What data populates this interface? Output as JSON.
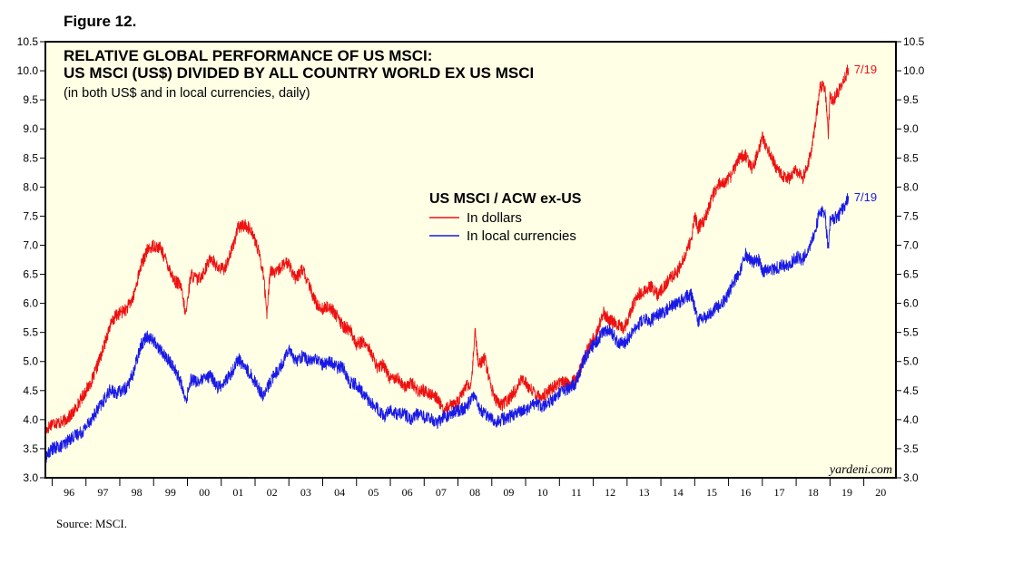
{
  "figure_label": "Figure 12.",
  "source": "Source: MSCI.",
  "colors": {
    "background": "#ffffe6",
    "dollars": "#ee1111",
    "local": "#1a1ae6",
    "frame": "#000000"
  },
  "chart_data": {
    "type": "line",
    "title_lines": [
      "RELATIVE GLOBAL PERFORMANCE OF US MSCI:",
      "US MSCI (US$) DIVIDED BY ALL COUNTRY WORLD EX US MSCI"
    ],
    "subtitle": "(in both US$ and in local currencies, daily)",
    "legend": {
      "title": "US MSCI / ACW ex-US",
      "placement": "center-top",
      "items": [
        "In dollars",
        "In local currencies"
      ]
    },
    "watermark": "yardeni.com",
    "ylim": [
      3.0,
      10.5
    ],
    "yticks": [
      "3.0",
      "3.5",
      "4.0",
      "4.5",
      "5.0",
      "5.5",
      "6.0",
      "6.5",
      "7.0",
      "7.5",
      "8.0",
      "8.5",
      "9.0",
      "9.5",
      "10.0",
      "10.5"
    ],
    "xlim": [
      1995.8,
      2020.95
    ],
    "xtick_labels": [
      "96",
      "97",
      "98",
      "99",
      "00",
      "01",
      "02",
      "03",
      "04",
      "05",
      "06",
      "07",
      "08",
      "09",
      "10",
      "11",
      "12",
      "13",
      "14",
      "15",
      "16",
      "17",
      "18",
      "19",
      "20"
    ],
    "grid": false,
    "series": [
      {
        "name": "In dollars",
        "end_label": "7/19",
        "points": [
          [
            1995.8,
            3.8
          ],
          [
            1996.0,
            3.95
          ],
          [
            1996.3,
            3.95
          ],
          [
            1996.6,
            4.1
          ],
          [
            1996.9,
            4.4
          ],
          [
            1997.2,
            4.7
          ],
          [
            1997.5,
            5.2
          ],
          [
            1997.7,
            5.6
          ],
          [
            1997.9,
            5.8
          ],
          [
            1998.2,
            5.9
          ],
          [
            1998.4,
            6.1
          ],
          [
            1998.6,
            6.6
          ],
          [
            1998.8,
            6.9
          ],
          [
            1999.0,
            7.0
          ],
          [
            1999.2,
            6.95
          ],
          [
            1999.4,
            6.7
          ],
          [
            1999.6,
            6.4
          ],
          [
            1999.8,
            6.3
          ],
          [
            1999.95,
            5.8
          ],
          [
            2000.1,
            6.5
          ],
          [
            2000.3,
            6.4
          ],
          [
            2000.5,
            6.55
          ],
          [
            2000.7,
            6.8
          ],
          [
            2000.9,
            6.6
          ],
          [
            2001.1,
            6.6
          ],
          [
            2001.3,
            6.9
          ],
          [
            2001.5,
            7.3
          ],
          [
            2001.7,
            7.35
          ],
          [
            2001.9,
            7.25
          ],
          [
            2002.1,
            6.9
          ],
          [
            2002.25,
            6.5
          ],
          [
            2002.35,
            5.8
          ],
          [
            2002.45,
            6.6
          ],
          [
            2002.6,
            6.5
          ],
          [
            2002.8,
            6.65
          ],
          [
            2003.0,
            6.7
          ],
          [
            2003.2,
            6.4
          ],
          [
            2003.4,
            6.6
          ],
          [
            2003.6,
            6.3
          ],
          [
            2003.8,
            6.0
          ],
          [
            2004.0,
            5.9
          ],
          [
            2004.2,
            5.95
          ],
          [
            2004.4,
            5.8
          ],
          [
            2004.6,
            5.6
          ],
          [
            2004.8,
            5.55
          ],
          [
            2005.0,
            5.3
          ],
          [
            2005.2,
            5.35
          ],
          [
            2005.4,
            5.2
          ],
          [
            2005.6,
            4.9
          ],
          [
            2005.8,
            4.95
          ],
          [
            2006.0,
            4.7
          ],
          [
            2006.2,
            4.75
          ],
          [
            2006.4,
            4.55
          ],
          [
            2006.6,
            4.65
          ],
          [
            2006.8,
            4.5
          ],
          [
            2007.0,
            4.5
          ],
          [
            2007.2,
            4.45
          ],
          [
            2007.4,
            4.35
          ],
          [
            2007.6,
            4.15
          ],
          [
            2007.8,
            4.25
          ],
          [
            2008.0,
            4.3
          ],
          [
            2008.2,
            4.55
          ],
          [
            2008.4,
            4.6
          ],
          [
            2008.5,
            5.55
          ],
          [
            2008.6,
            4.95
          ],
          [
            2008.8,
            5.05
          ],
          [
            2008.95,
            4.6
          ],
          [
            2009.1,
            4.35
          ],
          [
            2009.3,
            4.25
          ],
          [
            2009.5,
            4.35
          ],
          [
            2009.7,
            4.5
          ],
          [
            2009.9,
            4.7
          ],
          [
            2010.1,
            4.55
          ],
          [
            2010.3,
            4.45
          ],
          [
            2010.5,
            4.4
          ],
          [
            2010.7,
            4.5
          ],
          [
            2010.9,
            4.6
          ],
          [
            2011.1,
            4.65
          ],
          [
            2011.3,
            4.6
          ],
          [
            2011.5,
            4.7
          ],
          [
            2011.7,
            5.0
          ],
          [
            2011.9,
            5.3
          ],
          [
            2012.1,
            5.5
          ],
          [
            2012.3,
            5.85
          ],
          [
            2012.5,
            5.7
          ],
          [
            2012.7,
            5.65
          ],
          [
            2012.9,
            5.55
          ],
          [
            2013.1,
            5.85
          ],
          [
            2013.3,
            6.15
          ],
          [
            2013.5,
            6.2
          ],
          [
            2013.7,
            6.3
          ],
          [
            2013.9,
            6.15
          ],
          [
            2014.1,
            6.3
          ],
          [
            2014.3,
            6.45
          ],
          [
            2014.5,
            6.55
          ],
          [
            2014.7,
            6.8
          ],
          [
            2014.9,
            7.1
          ],
          [
            2015.0,
            7.5
          ],
          [
            2015.1,
            7.3
          ],
          [
            2015.3,
            7.45
          ],
          [
            2015.5,
            7.8
          ],
          [
            2015.7,
            8.05
          ],
          [
            2015.9,
            8.1
          ],
          [
            2016.1,
            8.2
          ],
          [
            2016.3,
            8.5
          ],
          [
            2016.5,
            8.55
          ],
          [
            2016.7,
            8.3
          ],
          [
            2016.9,
            8.65
          ],
          [
            2017.0,
            8.85
          ],
          [
            2017.2,
            8.6
          ],
          [
            2017.4,
            8.35
          ],
          [
            2017.6,
            8.2
          ],
          [
            2017.8,
            8.15
          ],
          [
            2018.0,
            8.3
          ],
          [
            2018.2,
            8.15
          ],
          [
            2018.4,
            8.5
          ],
          [
            2018.55,
            9.0
          ],
          [
            2018.7,
            9.7
          ],
          [
            2018.85,
            9.75
          ],
          [
            2018.95,
            8.9
          ],
          [
            2019.0,
            9.55
          ],
          [
            2019.1,
            9.5
          ],
          [
            2019.25,
            9.65
          ],
          [
            2019.4,
            9.8
          ],
          [
            2019.55,
            10.05
          ]
        ]
      },
      {
        "name": "In local currencies",
        "end_label": "7/19",
        "points": [
          [
            1995.8,
            3.35
          ],
          [
            1996.0,
            3.5
          ],
          [
            1996.3,
            3.55
          ],
          [
            1996.6,
            3.7
          ],
          [
            1996.9,
            3.8
          ],
          [
            1997.2,
            4.05
          ],
          [
            1997.5,
            4.3
          ],
          [
            1997.7,
            4.5
          ],
          [
            1997.9,
            4.45
          ],
          [
            1998.2,
            4.55
          ],
          [
            1998.4,
            4.8
          ],
          [
            1998.6,
            5.25
          ],
          [
            1998.8,
            5.45
          ],
          [
            1999.0,
            5.35
          ],
          [
            1999.2,
            5.2
          ],
          [
            1999.4,
            5.05
          ],
          [
            1999.6,
            4.9
          ],
          [
            1999.8,
            4.65
          ],
          [
            1999.95,
            4.3
          ],
          [
            2000.1,
            4.7
          ],
          [
            2000.3,
            4.65
          ],
          [
            2000.5,
            4.7
          ],
          [
            2000.7,
            4.75
          ],
          [
            2000.9,
            4.55
          ],
          [
            2001.1,
            4.65
          ],
          [
            2001.3,
            4.8
          ],
          [
            2001.5,
            5.05
          ],
          [
            2001.7,
            4.9
          ],
          [
            2001.9,
            4.75
          ],
          [
            2002.1,
            4.55
          ],
          [
            2002.25,
            4.4
          ],
          [
            2002.45,
            4.65
          ],
          [
            2002.6,
            4.8
          ],
          [
            2002.8,
            4.95
          ],
          [
            2003.0,
            5.25
          ],
          [
            2003.2,
            5.0
          ],
          [
            2003.4,
            5.1
          ],
          [
            2003.6,
            5.0
          ],
          [
            2003.8,
            5.05
          ],
          [
            2004.0,
            4.95
          ],
          [
            2004.2,
            5.0
          ],
          [
            2004.4,
            4.9
          ],
          [
            2004.6,
            4.9
          ],
          [
            2004.8,
            4.65
          ],
          [
            2005.0,
            4.6
          ],
          [
            2005.2,
            4.45
          ],
          [
            2005.4,
            4.3
          ],
          [
            2005.6,
            4.2
          ],
          [
            2005.8,
            4.05
          ],
          [
            2006.0,
            4.15
          ],
          [
            2006.2,
            4.1
          ],
          [
            2006.4,
            4.1
          ],
          [
            2006.6,
            4.0
          ],
          [
            2006.8,
            4.1
          ],
          [
            2007.0,
            4.05
          ],
          [
            2007.2,
            4.0
          ],
          [
            2007.4,
            3.95
          ],
          [
            2007.6,
            4.05
          ],
          [
            2007.8,
            4.1
          ],
          [
            2008.0,
            4.15
          ],
          [
            2008.2,
            4.2
          ],
          [
            2008.4,
            4.35
          ],
          [
            2008.5,
            4.45
          ],
          [
            2008.6,
            4.2
          ],
          [
            2008.8,
            4.1
          ],
          [
            2008.95,
            4.05
          ],
          [
            2009.1,
            3.95
          ],
          [
            2009.3,
            4.0
          ],
          [
            2009.5,
            4.05
          ],
          [
            2009.7,
            4.1
          ],
          [
            2009.9,
            4.15
          ],
          [
            2010.1,
            4.2
          ],
          [
            2010.3,
            4.3
          ],
          [
            2010.5,
            4.2
          ],
          [
            2010.7,
            4.3
          ],
          [
            2010.9,
            4.4
          ],
          [
            2011.1,
            4.5
          ],
          [
            2011.3,
            4.55
          ],
          [
            2011.5,
            4.65
          ],
          [
            2011.7,
            5.0
          ],
          [
            2011.9,
            5.2
          ],
          [
            2012.1,
            5.35
          ],
          [
            2012.3,
            5.5
          ],
          [
            2012.5,
            5.55
          ],
          [
            2012.7,
            5.35
          ],
          [
            2012.9,
            5.3
          ],
          [
            2013.1,
            5.45
          ],
          [
            2013.3,
            5.6
          ],
          [
            2013.5,
            5.75
          ],
          [
            2013.7,
            5.7
          ],
          [
            2013.9,
            5.8
          ],
          [
            2014.1,
            5.85
          ],
          [
            2014.3,
            5.95
          ],
          [
            2014.5,
            6.0
          ],
          [
            2014.7,
            6.1
          ],
          [
            2014.9,
            6.15
          ],
          [
            2015.0,
            5.95
          ],
          [
            2015.1,
            5.7
          ],
          [
            2015.3,
            5.75
          ],
          [
            2015.5,
            5.85
          ],
          [
            2015.7,
            5.95
          ],
          [
            2015.9,
            6.05
          ],
          [
            2016.1,
            6.3
          ],
          [
            2016.3,
            6.5
          ],
          [
            2016.5,
            6.85
          ],
          [
            2016.7,
            6.7
          ],
          [
            2016.9,
            6.75
          ],
          [
            2017.0,
            6.55
          ],
          [
            2017.2,
            6.6
          ],
          [
            2017.4,
            6.6
          ],
          [
            2017.6,
            6.65
          ],
          [
            2017.8,
            6.65
          ],
          [
            2018.0,
            6.8
          ],
          [
            2018.2,
            6.75
          ],
          [
            2018.4,
            7.0
          ],
          [
            2018.55,
            7.2
          ],
          [
            2018.7,
            7.6
          ],
          [
            2018.85,
            7.55
          ],
          [
            2018.95,
            6.9
          ],
          [
            2019.0,
            7.4
          ],
          [
            2019.1,
            7.45
          ],
          [
            2019.25,
            7.5
          ],
          [
            2019.4,
            7.65
          ],
          [
            2019.55,
            7.85
          ]
        ]
      }
    ]
  }
}
